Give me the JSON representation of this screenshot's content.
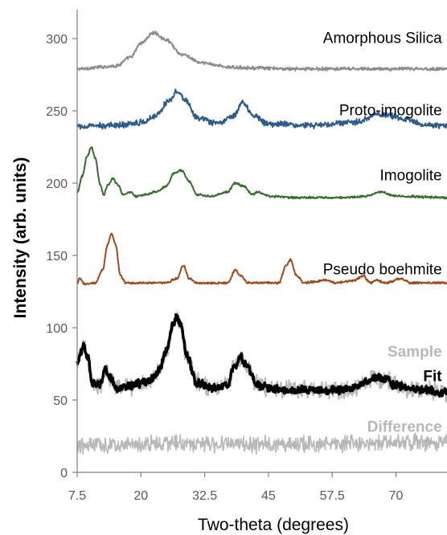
{
  "chart_data": {
    "type": "line",
    "xlabel": "Two-theta (degrees)",
    "ylabel": "Intensity (arb. units)",
    "xlim": [
      7.5,
      80
    ],
    "ylim": [
      0,
      320
    ],
    "x_ticks": [
      "7.5",
      "20",
      "32.5",
      "45",
      "57.5",
      "70"
    ],
    "x_tick_values": [
      7.5,
      20,
      32.5,
      45,
      57.5,
      70
    ],
    "y_ticks": [
      "0",
      "50",
      "100",
      "150",
      "200",
      "250",
      "300"
    ],
    "y_tick_values": [
      0,
      50,
      100,
      150,
      200,
      250,
      300
    ],
    "grid": false,
    "legend": "none (series labelled directly on the plot)",
    "series": [
      {
        "name": "Amorphous Silica",
        "color": "#8c8c8c",
        "bold": false,
        "label_x": 79,
        "label_y": 297,
        "width": 2,
        "noise": 0.9,
        "points": [
          [
            7.5,
            279
          ],
          [
            15,
            281
          ],
          [
            18,
            287
          ],
          [
            20,
            297
          ],
          [
            22.5,
            304
          ],
          [
            25,
            299
          ],
          [
            28,
            289
          ],
          [
            32,
            283
          ],
          [
            38,
            280
          ],
          [
            50,
            279
          ],
          [
            80,
            279
          ]
        ]
      },
      {
        "name": "Proto-imogolite",
        "color": "#2e5c8a",
        "bold": false,
        "label_x": 79,
        "label_y": 247,
        "width": 2,
        "noise": 1.6,
        "points": [
          [
            7.5,
            239
          ],
          [
            15,
            240
          ],
          [
            20,
            242
          ],
          [
            23,
            247
          ],
          [
            25.5,
            257
          ],
          [
            27,
            264
          ],
          [
            28.5,
            258
          ],
          [
            31,
            245
          ],
          [
            35,
            241
          ],
          [
            38,
            246
          ],
          [
            40,
            256
          ],
          [
            42,
            247
          ],
          [
            45,
            241
          ],
          [
            55,
            240
          ],
          [
            62,
            242
          ],
          [
            67,
            248
          ],
          [
            72,
            244
          ],
          [
            76,
            240
          ],
          [
            80,
            240
          ]
        ]
      },
      {
        "name": "Imogolite",
        "color": "#3a6b2f",
        "bold": false,
        "label_x": 79,
        "label_y": 202,
        "width": 2,
        "noise": 0.6,
        "points": [
          [
            7.5,
            193
          ],
          [
            8.5,
            205
          ],
          [
            9.5,
            219
          ],
          [
            10.3,
            225
          ],
          [
            11,
            218
          ],
          [
            12,
            199
          ],
          [
            12.7,
            192
          ],
          [
            13.5,
            199
          ],
          [
            14.5,
            203
          ],
          [
            15.5,
            199
          ],
          [
            16.5,
            192
          ],
          [
            18,
            194
          ],
          [
            19,
            191
          ],
          [
            21,
            192
          ],
          [
            23,
            194
          ],
          [
            25,
            198
          ],
          [
            26.5,
            207
          ],
          [
            28,
            209
          ],
          [
            29.5,
            201
          ],
          [
            31,
            192
          ],
          [
            34,
            191
          ],
          [
            37,
            194
          ],
          [
            38.5,
            200
          ],
          [
            40,
            198
          ],
          [
            42,
            192
          ],
          [
            43,
            194
          ],
          [
            45,
            191
          ],
          [
            50,
            190
          ],
          [
            60,
            190
          ],
          [
            64,
            191
          ],
          [
            67,
            194
          ],
          [
            70,
            191
          ],
          [
            80,
            190
          ]
        ]
      },
      {
        "name": "Pseudo boehmite",
        "color": "#9e4a1c",
        "bold": false,
        "label_x": 79,
        "label_y": 137,
        "width": 2,
        "noise": 0.6,
        "points": [
          [
            7.5,
            131
          ],
          [
            8,
            134
          ],
          [
            9,
            130
          ],
          [
            11,
            131
          ],
          [
            12.5,
            140
          ],
          [
            13.5,
            158
          ],
          [
            14.2,
            165
          ],
          [
            15,
            158
          ],
          [
            16,
            136
          ],
          [
            17,
            131
          ],
          [
            25,
            131
          ],
          [
            27,
            134
          ],
          [
            28.3,
            143
          ],
          [
            29.5,
            134
          ],
          [
            31,
            131
          ],
          [
            37,
            131
          ],
          [
            38.5,
            140
          ],
          [
            39.5,
            136
          ],
          [
            41,
            131
          ],
          [
            47,
            131
          ],
          [
            48.5,
            143
          ],
          [
            49.3,
            147
          ],
          [
            50.5,
            136
          ],
          [
            52,
            131
          ],
          [
            54,
            132
          ],
          [
            56,
            133
          ],
          [
            58,
            131
          ],
          [
            60,
            132
          ],
          [
            62,
            133
          ],
          [
            63.5,
            136
          ],
          [
            65,
            131
          ],
          [
            66,
            133
          ],
          [
            68,
            131
          ],
          [
            71,
            134
          ],
          [
            73,
            131
          ],
          [
            80,
            131
          ]
        ]
      },
      {
        "name": "Sample",
        "color": "#b8b8b8",
        "bold": true,
        "label_x": 79,
        "label_y": 80,
        "width": 2,
        "noise": 5,
        "points": [
          [
            7.5,
            75
          ],
          [
            8.8,
            88
          ],
          [
            9.5,
            80
          ],
          [
            10.5,
            62
          ],
          [
            12,
            60
          ],
          [
            13,
            72
          ],
          [
            14,
            65
          ],
          [
            15.5,
            58
          ],
          [
            18,
            60
          ],
          [
            20,
            62
          ],
          [
            22,
            64
          ],
          [
            23.5,
            70
          ],
          [
            25,
            84
          ],
          [
            26.3,
            103
          ],
          [
            27,
            108
          ],
          [
            27.8,
            102
          ],
          [
            29,
            80
          ],
          [
            31,
            62
          ],
          [
            34,
            58
          ],
          [
            37,
            60
          ],
          [
            38.3,
            73
          ],
          [
            39.5,
            80
          ],
          [
            41,
            72
          ],
          [
            43,
            60
          ],
          [
            46,
            58
          ],
          [
            50,
            57
          ],
          [
            55,
            57
          ],
          [
            60,
            57
          ],
          [
            62,
            59
          ],
          [
            64,
            62
          ],
          [
            66,
            66
          ],
          [
            68,
            64
          ],
          [
            70,
            60
          ],
          [
            72,
            58
          ],
          [
            75,
            57
          ],
          [
            80,
            55
          ]
        ]
      },
      {
        "name": "Fit",
        "color": "#000000",
        "bold": true,
        "label_x": 79,
        "label_y": 63,
        "width": 3.5,
        "noise": 2.2,
        "points": [
          [
            7.5,
            75
          ],
          [
            8.8,
            88
          ],
          [
            9.5,
            80
          ],
          [
            10.5,
            62
          ],
          [
            12,
            60
          ],
          [
            13,
            72
          ],
          [
            14,
            65
          ],
          [
            15.5,
            58
          ],
          [
            18,
            60
          ],
          [
            20,
            62
          ],
          [
            22,
            64
          ],
          [
            23.5,
            70
          ],
          [
            25,
            84
          ],
          [
            26.3,
            103
          ],
          [
            27,
            108
          ],
          [
            27.8,
            102
          ],
          [
            29,
            80
          ],
          [
            31,
            62
          ],
          [
            34,
            58
          ],
          [
            37,
            60
          ],
          [
            38.3,
            73
          ],
          [
            39.5,
            80
          ],
          [
            41,
            72
          ],
          [
            43,
            60
          ],
          [
            46,
            58
          ],
          [
            50,
            57
          ],
          [
            55,
            57
          ],
          [
            60,
            57
          ],
          [
            62,
            59
          ],
          [
            64,
            62
          ],
          [
            66,
            66
          ],
          [
            68,
            64
          ],
          [
            70,
            60
          ],
          [
            72,
            58
          ],
          [
            75,
            57
          ],
          [
            80,
            55
          ]
        ]
      },
      {
        "name": "Difference",
        "color": "#b8b8b8",
        "bold": true,
        "label_x": 79,
        "label_y": 28,
        "width": 1.6,
        "noise": 4.5,
        "points": [
          [
            7.5,
            18
          ],
          [
            20,
            20
          ],
          [
            40,
            19
          ],
          [
            60,
            20
          ],
          [
            80,
            21
          ]
        ]
      }
    ]
  }
}
